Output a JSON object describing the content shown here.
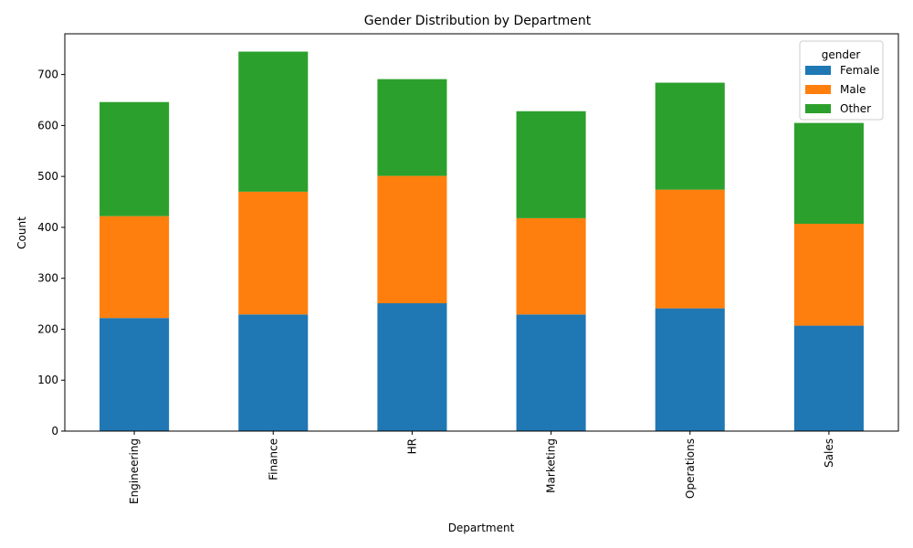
{
  "chart_data": {
    "type": "bar",
    "stacked": true,
    "title": "Gender Distribution by Department",
    "xlabel": "Department",
    "ylabel": "Count",
    "ylim": [
      0,
      780
    ],
    "yticks": [
      0,
      100,
      200,
      300,
      400,
      500,
      600,
      700
    ],
    "categories": [
      "Engineering",
      "Finance",
      "HR",
      "Marketing",
      "Operations",
      "Sales"
    ],
    "series": [
      {
        "name": "Female",
        "color": "#1f77b4",
        "values": [
          222,
          229,
          251,
          229,
          241,
          207
        ]
      },
      {
        "name": "Male",
        "color": "#ff7f0e",
        "values": [
          200,
          241,
          250,
          189,
          233,
          200
        ]
      },
      {
        "name": "Other",
        "color": "#2ca02c",
        "values": [
          224,
          275,
          190,
          210,
          210,
          198
        ]
      }
    ],
    "legend": {
      "title": "gender",
      "position": "top-right"
    },
    "grid": false
  }
}
